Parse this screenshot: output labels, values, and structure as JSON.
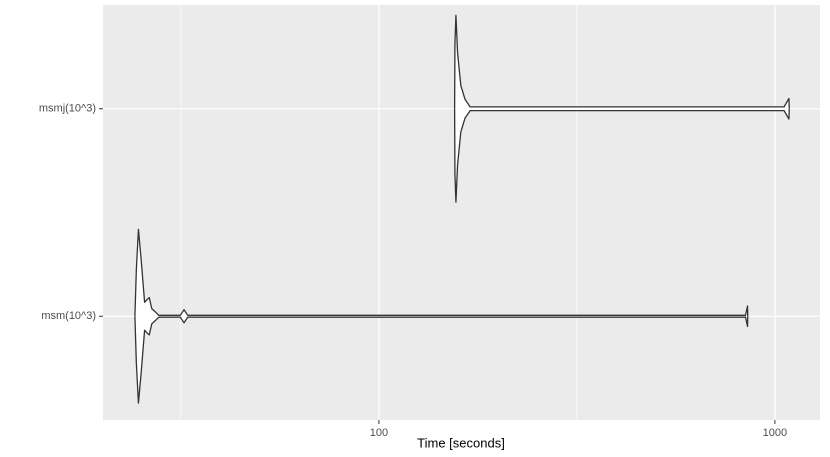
{
  "chart_data": {
    "type": "violin",
    "orientation": "horizontal",
    "xlabel": "Time [seconds]",
    "categories": [
      "msm(10^3)",
      "msmj(10^3)"
    ],
    "xscale": "log",
    "xlim": [
      20.1,
      1300
    ],
    "xticks": [
      100,
      1000
    ],
    "minor_xticks": [
      31.62,
      316.2
    ],
    "grid": true,
    "panel_color": "#ebebeb",
    "grid_color": "#ffffff",
    "line_color": "#333333",
    "fill_color": "#ffffff",
    "series": [
      {
        "x": [
          24.2,
          24.4,
          24.7,
          25.1,
          25.6,
          26.0,
          26.3,
          26.7,
          27.2,
          27.8,
          31.5,
          32.2,
          32.9,
          843,
          853,
          854
        ],
        "density": [
          0,
          0.5,
          0.93,
          0.6,
          0.15,
          0.18,
          0.2,
          0.08,
          0.05,
          0.01,
          0.01,
          0.07,
          0.01,
          0.01,
          0.11,
          0
        ]
      },
      {
        "x": [
          155.3,
          155.6,
          156.5,
          158,
          161,
          165,
          170,
          1055,
          1085,
          1087
        ],
        "density": [
          0,
          0.7,
          1.0,
          0.6,
          0.25,
          0.1,
          0.02,
          0.02,
          0.11,
          0
        ]
      }
    ]
  }
}
